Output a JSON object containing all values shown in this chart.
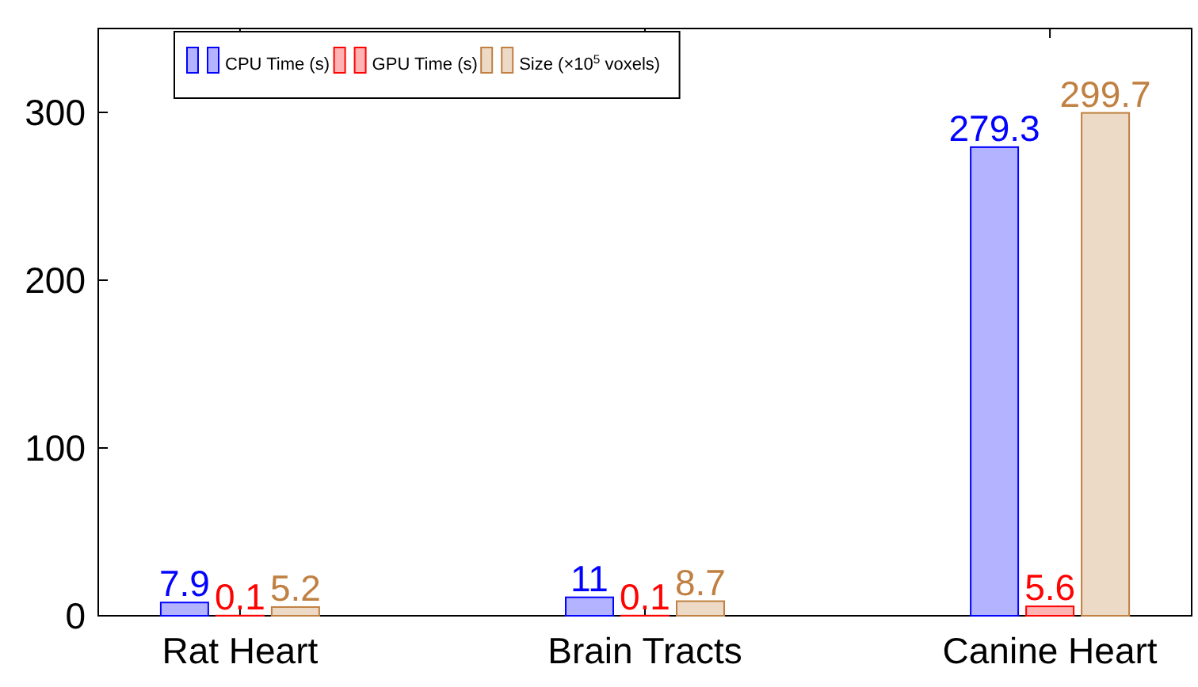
{
  "chart_data": {
    "type": "bar",
    "categories": [
      "Rat Heart",
      "Brain Tracts",
      "Canine Heart"
    ],
    "series": [
      {
        "name": "CPU Time (s)",
        "color": "#b3b3ff",
        "values": [
          7.9,
          11,
          279.3
        ]
      },
      {
        "name": "GPU Time (s)",
        "color": "#ffb3b3",
        "values": [
          0.1,
          0.1,
          5.6
        ]
      },
      {
        "name": "Size (×10$^{5}$ voxels)",
        "color": "#ecd9c6",
        "values": [
          5.2,
          8.7,
          299.7
        ]
      }
    ],
    "ylim": [
      0,
      350
    ],
    "yticks": [
      0,
      100,
      200,
      300
    ],
    "data_labels": true,
    "legend": "top left"
  }
}
